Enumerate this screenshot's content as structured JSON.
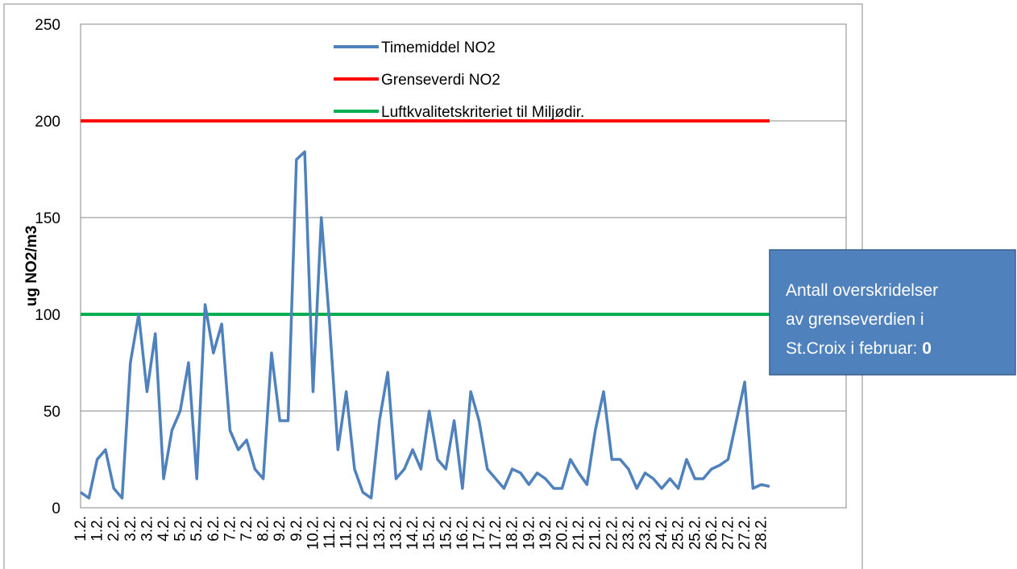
{
  "chart_data": {
    "type": "line",
    "y_label": "ug NO2/m3",
    "categories": [
      "1.2.",
      null,
      "1.2.",
      null,
      "2.2.",
      null,
      "3.2.",
      null,
      "3.2.",
      null,
      "4.2.",
      null,
      "5.2.",
      null,
      "5.2.",
      null,
      "6.2.",
      null,
      "7.2.",
      null,
      "7.2.",
      null,
      "8.2.",
      null,
      "9.2.",
      null,
      "9.2.",
      null,
      "10.2.",
      null,
      "11.2.",
      null,
      "11.2.",
      null,
      "12.2.",
      null,
      "13.2.",
      null,
      "13.2.",
      null,
      "14.2.",
      null,
      "15.2.",
      null,
      "15.2.",
      null,
      "16.2.",
      null,
      "17.2.",
      null,
      "17.2.",
      null,
      "18.2.",
      null,
      "19.2.",
      null,
      "19.2.",
      null,
      "20.2.",
      null,
      "21.2.",
      null,
      "21.2.",
      null,
      "22.2.",
      null,
      "23.2.",
      null,
      "23.2.",
      null,
      "24.2.",
      null,
      "25.2.",
      null,
      "25.2.",
      null,
      "26.2.",
      null,
      "27.2.",
      null,
      "27.2.",
      null,
      "28.2.",
      null
    ],
    "series": [
      {
        "name": "Timemiddel NO2",
        "color": "#4f81bd",
        "values": [
          8,
          5,
          25,
          30,
          10,
          5,
          75,
          100,
          60,
          90,
          15,
          40,
          50,
          75,
          15,
          105,
          80,
          95,
          40,
          30,
          35,
          20,
          15,
          80,
          45,
          45,
          180,
          184,
          60,
          150,
          95,
          30,
          60,
          20,
          8,
          5,
          45,
          70,
          15,
          20,
          30,
          20,
          50,
          25,
          20,
          45,
          10,
          60,
          45,
          20,
          15,
          10,
          20,
          18,
          12,
          18,
          15,
          10,
          10,
          25,
          18,
          12,
          40,
          60,
          25,
          25,
          20,
          10,
          18,
          15,
          10,
          15,
          10,
          25,
          15,
          15,
          20,
          22,
          25,
          45,
          65,
          10,
          12,
          11
        ]
      }
    ],
    "reference_lines": [
      {
        "name": "Grenseverdi NO2",
        "color": "#ff0000",
        "value": 200
      },
      {
        "name": "Luftkvalitetskriteriet til Miljødir.",
        "color": "#00b050",
        "value": 100
      }
    ],
    "annotation": {
      "lines": [
        "Antall overskridelser",
        "av grenseverdien i",
        "St.Croix i februar: "
      ],
      "value": 0
    },
    "ylim": [
      0,
      250
    ],
    "yticks": [
      0,
      50,
      100,
      150,
      200,
      250
    ],
    "grid": true
  }
}
